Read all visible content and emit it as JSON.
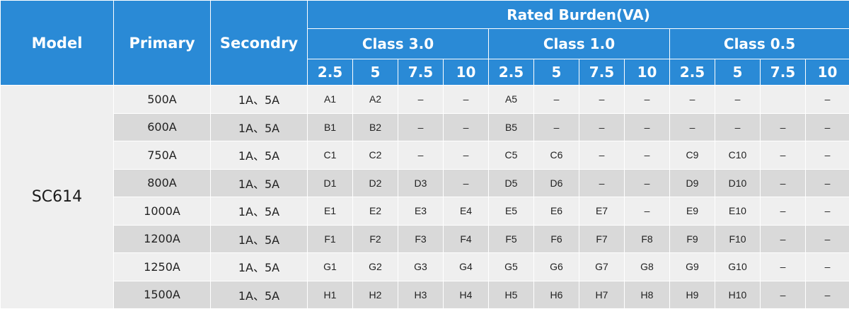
{
  "header": {
    "model": "Model",
    "primary": "Primary",
    "secondary": "Secondry",
    "rated_burden": "Rated Burden(VA)",
    "classes": [
      {
        "label": "Class 3.0",
        "burdens": [
          "2.5",
          "5",
          "7.5",
          "10"
        ]
      },
      {
        "label": "Class 1.0",
        "burdens": [
          "2.5",
          "5",
          "7.5",
          "10"
        ]
      },
      {
        "label": "Class 0.5",
        "burdens": [
          "2.5",
          "5",
          "7.5",
          "10"
        ]
      }
    ]
  },
  "model_name": "SC614",
  "rows": [
    {
      "primary": "500A",
      "secondary": "1A、5A",
      "cells": [
        "A1",
        "A2",
        "–",
        "–",
        "A5",
        "–",
        "–",
        "–",
        "–",
        "–",
        "",
        "–"
      ]
    },
    {
      "primary": "600A",
      "secondary": "1A、5A",
      "cells": [
        "B1",
        "B2",
        "–",
        "–",
        "B5",
        "–",
        "–",
        "–",
        "–",
        "–",
        "–",
        "–"
      ]
    },
    {
      "primary": "750A",
      "secondary": "1A、5A",
      "cells": [
        "C1",
        "C2",
        "–",
        "–",
        "C5",
        "C6",
        "–",
        "–",
        "C9",
        "C10",
        "–",
        "–"
      ]
    },
    {
      "primary": "800A",
      "secondary": "1A、5A",
      "cells": [
        "D1",
        "D2",
        "D3",
        "–",
        "D5",
        "D6",
        "–",
        "–",
        "D9",
        "D10",
        "–",
        "–"
      ]
    },
    {
      "primary": "1000A",
      "secondary": "1A、5A",
      "cells": [
        "E1",
        "E2",
        "E3",
        "E4",
        "E5",
        "E6",
        "E7",
        "–",
        "E9",
        "E10",
        "–",
        "–"
      ]
    },
    {
      "primary": "1200A",
      "secondary": "1A、5A",
      "cells": [
        "F1",
        "F2",
        "F3",
        "F4",
        "F5",
        "F6",
        "F7",
        "F8",
        "F9",
        "F10",
        "–",
        "–"
      ]
    },
    {
      "primary": "1250A",
      "secondary": "1A、5A",
      "cells": [
        "G1",
        "G2",
        "G3",
        "G4",
        "G5",
        "G6",
        "G7",
        "G8",
        "G9",
        "G10",
        "–",
        "–"
      ]
    },
    {
      "primary": "1500A",
      "secondary": "1A、5A",
      "cells": [
        "H1",
        "H2",
        "H3",
        "H4",
        "H5",
        "H6",
        "H7",
        "H8",
        "H9",
        "H10",
        "–",
        "–"
      ]
    }
  ]
}
